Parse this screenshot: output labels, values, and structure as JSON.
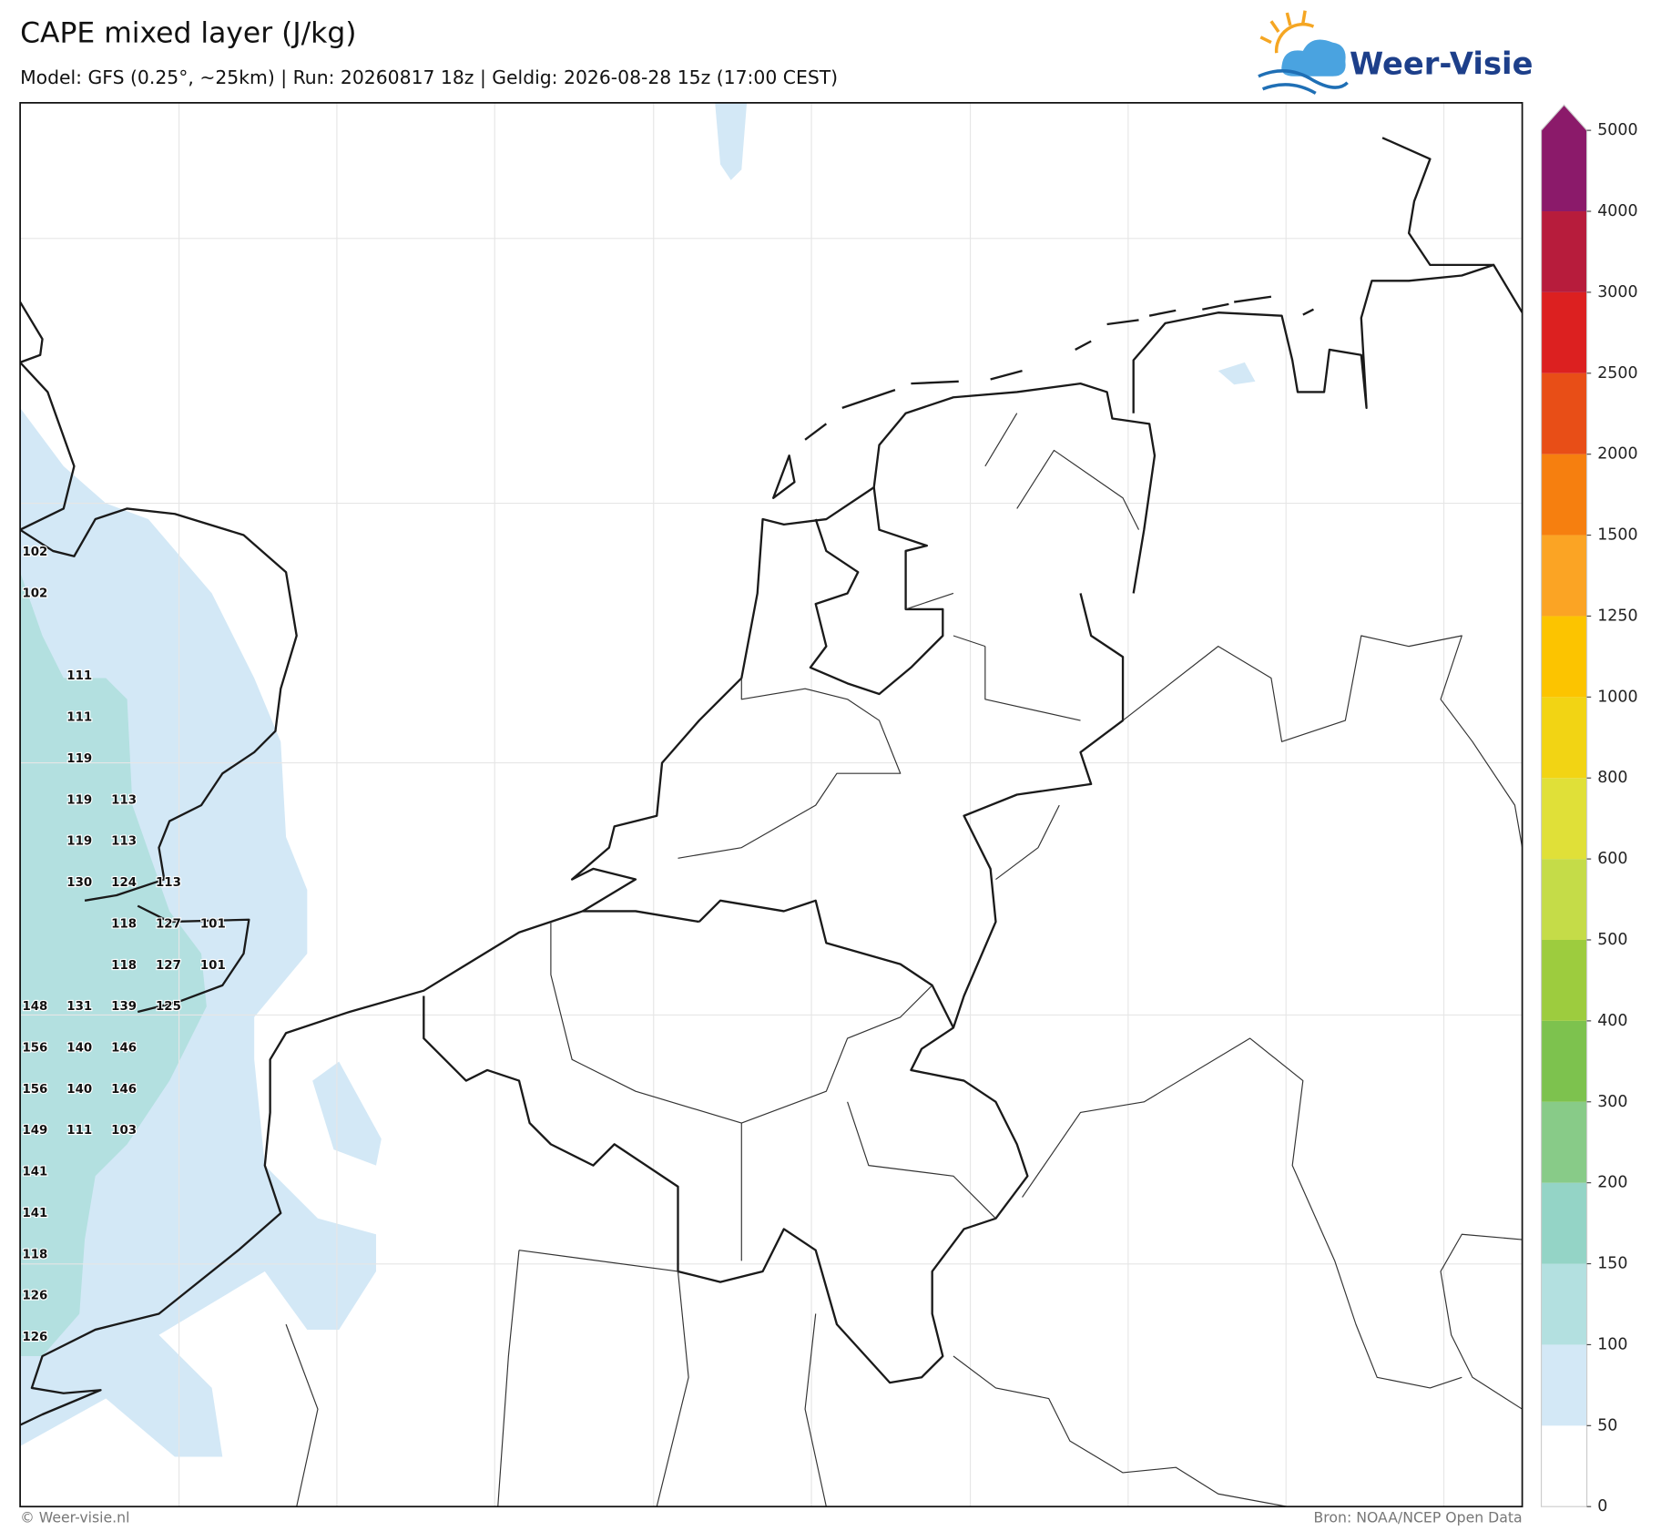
{
  "header": {
    "title": "CAPE mixed layer (J/kg)",
    "subtitle": "Model: GFS (0.25°, ~25km)  |  Run: 20260817 18z  |  Geldig: 2026-08-28 15z (17:00 CEST)"
  },
  "logo": {
    "text": "Weer-Visie"
  },
  "colorbar": {
    "levels": [
      0,
      50,
      100,
      150,
      200,
      300,
      400,
      500,
      600,
      800,
      1000,
      1250,
      1500,
      2000,
      2500,
      3000,
      4000,
      5000
    ],
    "colors": [
      "#ffffff",
      "#d3e8f6",
      "#b3e0e0",
      "#94d4c6",
      "#88cb88",
      "#7dc24e",
      "#9dcc3e",
      "#c5dc48",
      "#e0e038",
      "#f2d414",
      "#fcc400",
      "#fba424",
      "#f67f0f",
      "#e84e17",
      "#dc2020",
      "#b71c3c",
      "#8b1a6a"
    ]
  },
  "map": {
    "values": [
      [
        102,
        null,
        null,
        null,
        null
      ],
      [
        102,
        null,
        null,
        null,
        null
      ],
      [
        null,
        null,
        null,
        null,
        null
      ],
      [
        null,
        111,
        null,
        null,
        null
      ],
      [
        null,
        111,
        null,
        null,
        null
      ],
      [
        null,
        119,
        null,
        null,
        null
      ],
      [
        null,
        119,
        113,
        null,
        null
      ],
      [
        null,
        119,
        113,
        null,
        null
      ],
      [
        null,
        130,
        124,
        113,
        null
      ],
      [
        null,
        null,
        118,
        127,
        101
      ],
      [
        null,
        null,
        118,
        127,
        101
      ],
      [
        148,
        131,
        139,
        125,
        null
      ],
      [
        156,
        140,
        146,
        null,
        null
      ],
      [
        156,
        140,
        146,
        null,
        null
      ],
      [
        149,
        111,
        103,
        null,
        null
      ],
      [
        141,
        null,
        null,
        null,
        null
      ],
      [
        141,
        null,
        null,
        null,
        null
      ],
      [
        118,
        null,
        null,
        null,
        null
      ],
      [
        126,
        null,
        null,
        null,
        null
      ],
      [
        126,
        null,
        null,
        null,
        null
      ]
    ]
  },
  "footer": {
    "left": "© Weer-visie.nl",
    "right": "Bron: NOAA/NCEP Open Data"
  }
}
